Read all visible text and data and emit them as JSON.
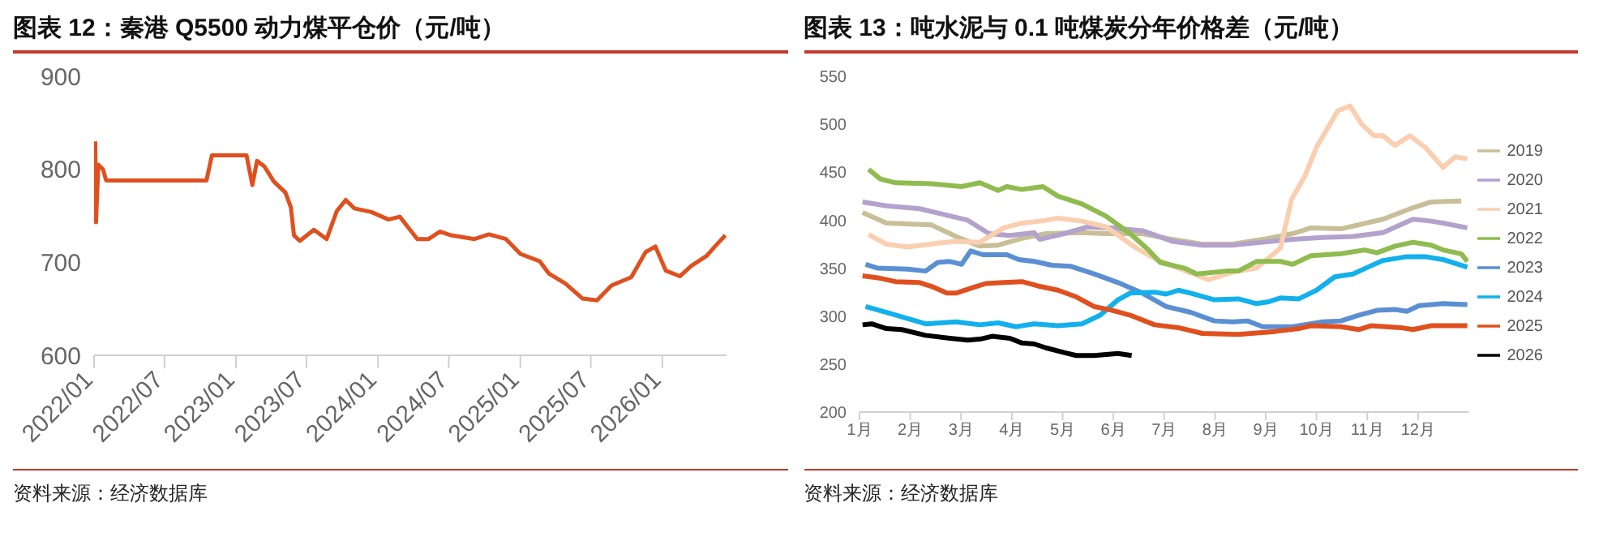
{
  "chart_data": [
    {
      "type": "line",
      "title": "图表 12：秦港 Q5500 动力煤平仓价（元/吨）",
      "annotations": [
        "资料来源：经济数据库"
      ],
      "color": "#e0501f",
      "grid": false,
      "legend": false,
      "xlim": [
        "2022-01-01",
        "2026-06-15"
      ],
      "xticks": [
        {
          "value": "2022-01-01",
          "label": "2022/01"
        },
        {
          "value": "2022-07-01",
          "label": "2022/07"
        },
        {
          "value": "2023-01-01",
          "label": "2023/01"
        },
        {
          "value": "2023-07-01",
          "label": "2023/07"
        },
        {
          "value": "2024-01-01",
          "label": "2024/01"
        },
        {
          "value": "2024-07-01",
          "label": "2024/07"
        },
        {
          "value": "2025-01-01",
          "label": "2025/01"
        },
        {
          "value": "2025-07-01",
          "label": "2025/07"
        },
        {
          "value": "2026-01-01",
          "label": "2026/01"
        }
      ],
      "ylim": [
        600,
        900
      ],
      "yticks": [
        600,
        700,
        800,
        900
      ],
      "x": [
        "2022-01-04",
        "2022-01-06",
        "2022-01-12",
        "2022-01-24",
        "2022-02-01",
        "2022-10-17",
        "2022-10-31",
        "2023-01-28",
        "2023-02-12",
        "2023-02-24",
        "2023-03-15",
        "2023-04-08",
        "2023-05-08",
        "2023-05-22",
        "2023-05-30",
        "2023-06-14",
        "2023-07-20",
        "2023-08-22",
        "2023-09-17",
        "2023-10-10",
        "2023-11-01",
        "2023-12-15",
        "2024-01-28",
        "2024-02-26",
        "2024-04-11",
        "2024-05-10",
        "2024-06-08",
        "2024-07-07",
        "2024-09-05",
        "2024-10-12",
        "2024-11-25",
        "2025-01-01",
        "2025-02-20",
        "2025-03-15",
        "2025-04-27",
        "2025-06-10",
        "2025-07-17",
        "2025-08-23",
        "2025-10-13",
        "2025-11-19",
        "2025-12-14",
        "2026-01-10",
        "2026-02-15",
        "2026-03-16",
        "2026-04-25",
        "2026-05-16",
        "2026-06-12"
      ],
      "values": [
        830,
        743,
        805,
        800,
        788,
        788,
        815,
        815,
        783,
        809,
        803,
        787,
        775,
        759,
        729,
        723,
        735,
        725,
        755,
        767,
        758,
        754,
        746,
        749,
        725,
        725,
        733,
        729,
        725,
        730,
        725,
        709,
        701,
        688,
        677,
        661,
        659,
        675,
        684,
        711,
        717,
        691,
        685,
        696,
        707,
        717,
        729
      ]
    },
    {
      "type": "line",
      "title": "图表 13：吨水泥与 0.1 吨煤炭分年价格差（元/吨）",
      "annotations": [
        "资料来源：经济数据库"
      ],
      "grid": false,
      "legend": "right",
      "xlim": [
        1,
        13
      ],
      "xticks": [
        {
          "value": 1,
          "label": "1月"
        },
        {
          "value": 2,
          "label": "2月"
        },
        {
          "value": 3,
          "label": "3月"
        },
        {
          "value": 4,
          "label": "4月"
        },
        {
          "value": 5,
          "label": "5月"
        },
        {
          "value": 6,
          "label": "6月"
        },
        {
          "value": 7,
          "label": "7月"
        },
        {
          "value": 8,
          "label": "8月"
        },
        {
          "value": 9,
          "label": "9月"
        },
        {
          "value": 10,
          "label": "10月"
        },
        {
          "value": 11,
          "label": "11月"
        },
        {
          "value": 12,
          "label": "12月"
        }
      ],
      "ylim": [
        200,
        550
      ],
      "yticks": [
        200,
        250,
        300,
        350,
        400,
        450,
        500,
        550
      ],
      "series": [
        {
          "name": "2019",
          "color": "#c8bf98",
          "x": [
            1.06,
            1.53,
            2.42,
            2.9,
            3.37,
            3.73,
            4.2,
            4.67,
            5.38,
            5.86,
            6.57,
            7.16,
            7.75,
            8.35,
            8.94,
            9.53,
            9.89,
            10.48,
            11.31,
            11.9,
            12.26,
            12.85
          ],
          "values": [
            408,
            397,
            395,
            383,
            373,
            374,
            381,
            386,
            387,
            386,
            386,
            380,
            375,
            375,
            380,
            386,
            392,
            391,
            401,
            413,
            419,
            420
          ]
        },
        {
          "name": "2020",
          "color": "#b3a2cc",
          "x": [
            1.06,
            1.53,
            2.18,
            2.66,
            3.13,
            3.55,
            3.96,
            4.44,
            4.55,
            5.03,
            5.5,
            5.98,
            6.57,
            7.16,
            7.75,
            8.35,
            8.94,
            9.53,
            10.12,
            10.72,
            11.31,
            11.9,
            12.26,
            12.49,
            12.97
          ],
          "values": [
            419,
            415,
            412,
            406,
            400,
            386,
            384,
            387,
            380,
            386,
            393,
            392,
            389,
            378,
            374,
            374,
            377,
            380,
            382,
            383,
            387,
            401,
            399,
            397,
            392
          ]
        },
        {
          "name": "2021",
          "color": "#f9cfb0",
          "x": [
            1.18,
            1.53,
            1.95,
            2.54,
            2.9,
            3.37,
            3.84,
            4.2,
            4.55,
            4.91,
            5.38,
            5.86,
            6.45,
            6.81,
            7.28,
            7.87,
            8.35,
            8.82,
            9.29,
            9.51,
            9.77,
            10.0,
            10.42,
            10.66,
            10.89,
            11.13,
            11.31,
            11.54,
            11.84,
            12.14,
            12.49,
            12.73,
            12.97
          ],
          "values": [
            385,
            375,
            372,
            376,
            378,
            377,
            392,
            397,
            399,
            402,
            399,
            393,
            371,
            360,
            350,
            338,
            346,
            350,
            371,
            422,
            446,
            476,
            514,
            519,
            500,
            488,
            488,
            478,
            488,
            476,
            455,
            466,
            464
          ]
        },
        {
          "name": "2022",
          "color": "#8fbb4f",
          "x": [
            1.18,
            1.41,
            1.71,
            2.42,
            3.01,
            3.37,
            3.73,
            3.9,
            4.2,
            4.61,
            4.91,
            5.38,
            5.86,
            6.33,
            6.69,
            6.92,
            7.4,
            7.64,
            8.23,
            8.46,
            8.82,
            9.29,
            9.53,
            9.89,
            10.48,
            10.95,
            11.19,
            11.55,
            11.9,
            12.26,
            12.49,
            12.85,
            12.97
          ],
          "values": [
            453,
            443,
            439,
            438,
            435,
            439,
            431,
            435,
            432,
            435,
            425,
            417,
            404,
            386,
            369,
            356,
            350,
            344,
            347,
            347,
            357,
            357,
            354,
            363,
            365,
            369,
            366,
            373,
            377,
            374,
            369,
            365,
            357
          ]
        },
        {
          "name": "2023",
          "color": "#5b8fd4",
          "x": [
            1.12,
            1.36,
            1.95,
            2.3,
            2.54,
            2.78,
            3.01,
            3.19,
            3.43,
            3.9,
            4.14,
            4.44,
            4.79,
            5.15,
            5.62,
            6.09,
            6.57,
            7.04,
            7.52,
            7.99,
            8.35,
            8.64,
            8.94,
            9.53,
            10.12,
            10.48,
            10.83,
            11.19,
            11.55,
            11.78,
            12.02,
            12.49,
            12.97
          ],
          "values": [
            354,
            350,
            349,
            347,
            356,
            357,
            354,
            368,
            364,
            364,
            359,
            357,
            353,
            352,
            344,
            335,
            324,
            310,
            304,
            295,
            294,
            295,
            289,
            289,
            294,
            295,
            301,
            306,
            307,
            305,
            311,
            313,
            312
          ]
        },
        {
          "name": "2024",
          "color": "#12b0ec",
          "x": [
            1.12,
            1.59,
            2.3,
            2.9,
            3.37,
            3.73,
            4.08,
            4.44,
            4.91,
            5.38,
            5.74,
            6.09,
            6.33,
            6.81,
            7.04,
            7.28,
            7.52,
            7.99,
            8.46,
            8.82,
            9.06,
            9.29,
            9.65,
            10.0,
            10.36,
            10.72,
            11.01,
            11.31,
            11.78,
            12.14,
            12.49,
            12.97
          ],
          "values": [
            310,
            303,
            292,
            294,
            291,
            293,
            289,
            292,
            290,
            292,
            301,
            317,
            324,
            325,
            323,
            327,
            324,
            317,
            318,
            313,
            315,
            319,
            318,
            327,
            341,
            344,
            351,
            358,
            362,
            362,
            359,
            351
          ]
        },
        {
          "name": "2025",
          "color": "#e0501f",
          "x": [
            1.06,
            1.36,
            1.71,
            2.18,
            2.42,
            2.72,
            2.9,
            3.25,
            3.49,
            3.84,
            4.2,
            4.55,
            4.91,
            5.27,
            5.62,
            5.98,
            6.33,
            6.81,
            7.28,
            7.75,
            8.46,
            9.18,
            9.65,
            9.89,
            10.48,
            10.83,
            11.07,
            11.66,
            11.9,
            12.26,
            12.97
          ],
          "values": [
            342,
            340,
            336,
            335,
            331,
            324,
            324,
            330,
            334,
            335,
            336,
            331,
            327,
            320,
            310,
            306,
            301,
            291,
            288,
            282,
            281,
            284,
            287,
            290,
            289,
            286,
            290,
            288,
            286,
            290,
            290
          ]
        },
        {
          "name": "2026",
          "color": "#000000",
          "x": [
            1.06,
            1.24,
            1.53,
            1.83,
            2.3,
            2.78,
            3.13,
            3.37,
            3.61,
            3.96,
            4.2,
            4.44,
            4.67,
            5.03,
            5.27,
            5.62,
            5.86,
            6.09,
            6.36
          ],
          "values": [
            291,
            292,
            287,
            286,
            280,
            277,
            275,
            276,
            279,
            277,
            272,
            271,
            267,
            262,
            259,
            259,
            260,
            261,
            259
          ]
        }
      ]
    }
  ]
}
